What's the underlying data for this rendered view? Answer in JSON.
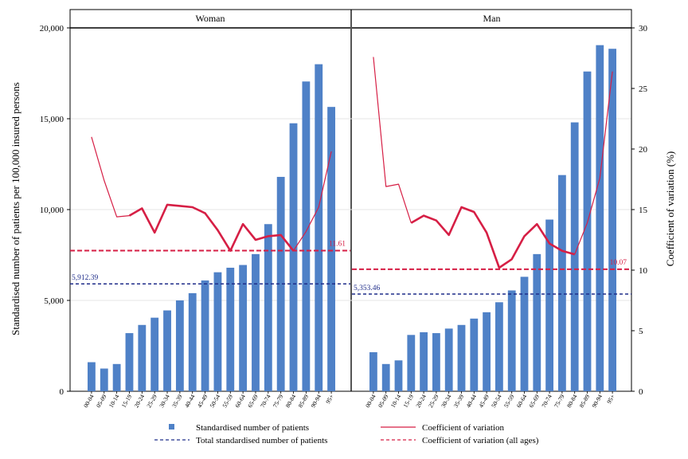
{
  "chart_data": {
    "type": "bar",
    "ylabel": "Standardised number of patients per 100,000 insured persons",
    "y2label": "Coefficient of variation (%)",
    "ylim": [
      0,
      20000
    ],
    "y2lim": [
      0,
      30
    ],
    "yticks": [
      "0",
      "5,000",
      "10,000",
      "15,000",
      "20,000"
    ],
    "y2ticks": [
      "0",
      "5",
      "10",
      "15",
      "20",
      "25",
      "30"
    ],
    "categories": [
      "00-04",
      "05-09",
      "10-14",
      "15-19",
      "20-24",
      "25-29",
      "30-34",
      "35-39",
      "40-44",
      "45-49",
      "50-54",
      "55-59",
      "60-64",
      "65-69",
      "70-74",
      "75-79",
      "80-84",
      "85-89",
      "90-94",
      "95+"
    ],
    "colors": {
      "bar": "#4f81c7",
      "cv": "#d61f45",
      "total": "#1f2d8a"
    },
    "legend": [
      {
        "label": "Standardised number of patients",
        "symbol": "square"
      },
      {
        "label": "Coefficient of variation",
        "symbol": "solid-line"
      },
      {
        "label": "Total standardised number of patients",
        "symbol": "navy-dashed"
      },
      {
        "label": "Coefficient of variation (all ages)",
        "symbol": "red-dashed"
      }
    ],
    "panels": [
      {
        "title": "Woman",
        "patients": [
          1600,
          1250,
          1500,
          3200,
          3650,
          4050,
          4450,
          5000,
          5400,
          6100,
          6550,
          6800,
          6950,
          7550,
          9200,
          11800,
          14750,
          17050,
          18000,
          15650
        ],
        "cv": [
          21,
          17.4,
          14.4,
          14.5,
          15.1,
          13.1,
          15.4,
          15.3,
          15.2,
          14.7,
          13.3,
          11.6,
          13.8,
          12.5,
          12.8,
          12.9,
          11.6,
          13.2,
          15.2,
          19.8
        ],
        "total": 5912.39,
        "total_label": "5,912.39",
        "cv_all": 11.61,
        "cv_all_label": "11.61"
      },
      {
        "title": "Man",
        "patients": [
          2150,
          1500,
          1700,
          3100,
          3250,
          3200,
          3450,
          3650,
          4000,
          4350,
          4900,
          5550,
          6300,
          7550,
          9450,
          11900,
          14800,
          17600,
          19050,
          18850
        ],
        "cv": [
          27.6,
          16.9,
          17.1,
          13.9,
          14.5,
          14.1,
          12.9,
          15.2,
          14.8,
          13.1,
          10.2,
          10.9,
          12.8,
          13.8,
          12.2,
          11.6,
          11.3,
          13.9,
          17.6,
          26.4
        ],
        "total": 5353.46,
        "total_label": "5,353.46",
        "cv_all": 10.07,
        "cv_all_label": "10.07"
      }
    ]
  }
}
